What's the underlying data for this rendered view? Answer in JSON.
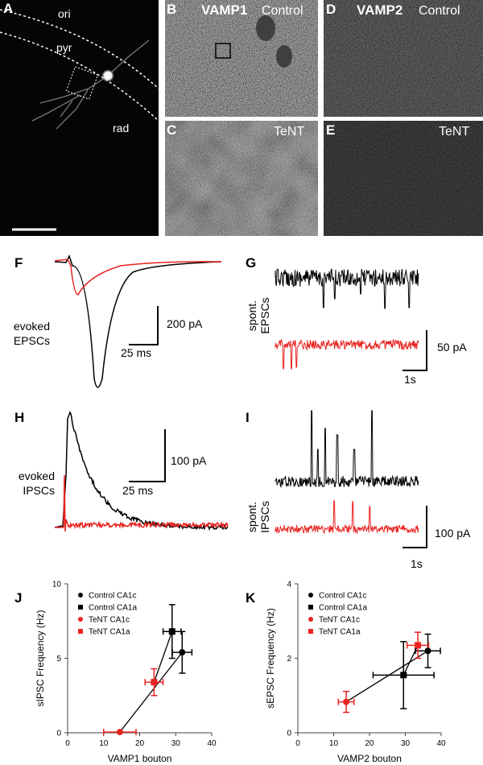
{
  "panels": {
    "A": {
      "letter": "A",
      "labels": [
        "ori",
        "pyr",
        "rad"
      ]
    },
    "B": {
      "letter": "B",
      "protein": "VAMP1",
      "condition": "Control"
    },
    "C": {
      "letter": "C",
      "condition": "TeNT"
    },
    "D": {
      "letter": "D",
      "protein": "VAMP2",
      "condition": "Control"
    },
    "E": {
      "letter": "E",
      "condition": "TeNT"
    },
    "F": {
      "letter": "F",
      "label": [
        "evoked",
        "EPSCs"
      ],
      "scale_y": "200 pA",
      "scale_x": "25 ms"
    },
    "G": {
      "letter": "G",
      "label": [
        "spont.",
        "EPSCs"
      ],
      "scale_y": "50 pA",
      "scale_x": "1s"
    },
    "H": {
      "letter": "H",
      "label": [
        "evoked",
        "IPSCs"
      ],
      "scale_y": "100 pA",
      "scale_x": "25 ms"
    },
    "I": {
      "letter": "I",
      "label": [
        "spont.",
        "IPSCs"
      ],
      "scale_y": "100 pA",
      "scale_x": "1s"
    },
    "J": {
      "letter": "J"
    },
    "K": {
      "letter": "K"
    }
  },
  "chart_data": [
    {
      "type": "scatter",
      "x_label": "VAMP1 bouton",
      "y_label": "sIPSC Frequency (Hz)",
      "xlim": [
        0,
        40
      ],
      "xticks": [
        0,
        10,
        20,
        30,
        40
      ],
      "ylim": [
        0,
        10
      ],
      "yticks": [
        0,
        5,
        10
      ],
      "series": [
        {
          "name": "Control CA1c",
          "color": "#000000",
          "marker": "circle",
          "x": 31.8,
          "y": 5.4,
          "xerr": 2.7,
          "yerr": 1.4
        },
        {
          "name": "Control CA1a",
          "color": "#000000",
          "marker": "square",
          "x": 29,
          "y": 6.8,
          "xerr": 2.5,
          "yerr": 1.8
        },
        {
          "name": "TeNT CA1c",
          "color": "#e8231f",
          "marker": "circle",
          "x": 14.5,
          "y": 0.05,
          "xerr": 4.5,
          "yerr": 0
        },
        {
          "name": "TeNT CA1a",
          "color": "#e8231f",
          "marker": "square",
          "x": 24,
          "y": 3.4,
          "xerr": 2.5,
          "yerr": 0.9
        }
      ]
    },
    {
      "type": "scatter",
      "x_label": "VAMP2 bouton",
      "y_label": "sEPSC Frequency (Hz)",
      "xlim": [
        0,
        40
      ],
      "xticks": [
        0,
        10,
        20,
        30,
        40
      ],
      "ylim": [
        0,
        4
      ],
      "yticks": [
        0,
        2,
        4
      ],
      "series": [
        {
          "name": "Control CA1c",
          "color": "#000000",
          "marker": "circle",
          "x": 36.3,
          "y": 2.2,
          "xerr": 3.5,
          "yerr": 0.45
        },
        {
          "name": "Control CA1a",
          "color": "#000000",
          "marker": "square",
          "x": 29.5,
          "y": 1.55,
          "xerr": 8.5,
          "yerr": 0.9
        },
        {
          "name": "TeNT CA1c",
          "color": "#e8231f",
          "marker": "circle",
          "x": 13.5,
          "y": 0.83,
          "xerr": 2.2,
          "yerr": 0.28
        },
        {
          "name": "TeNT CA1a",
          "color": "#e8231f",
          "marker": "square",
          "x": 33.5,
          "y": 2.35,
          "xerr": 3,
          "yerr": 0.35
        }
      ]
    }
  ]
}
